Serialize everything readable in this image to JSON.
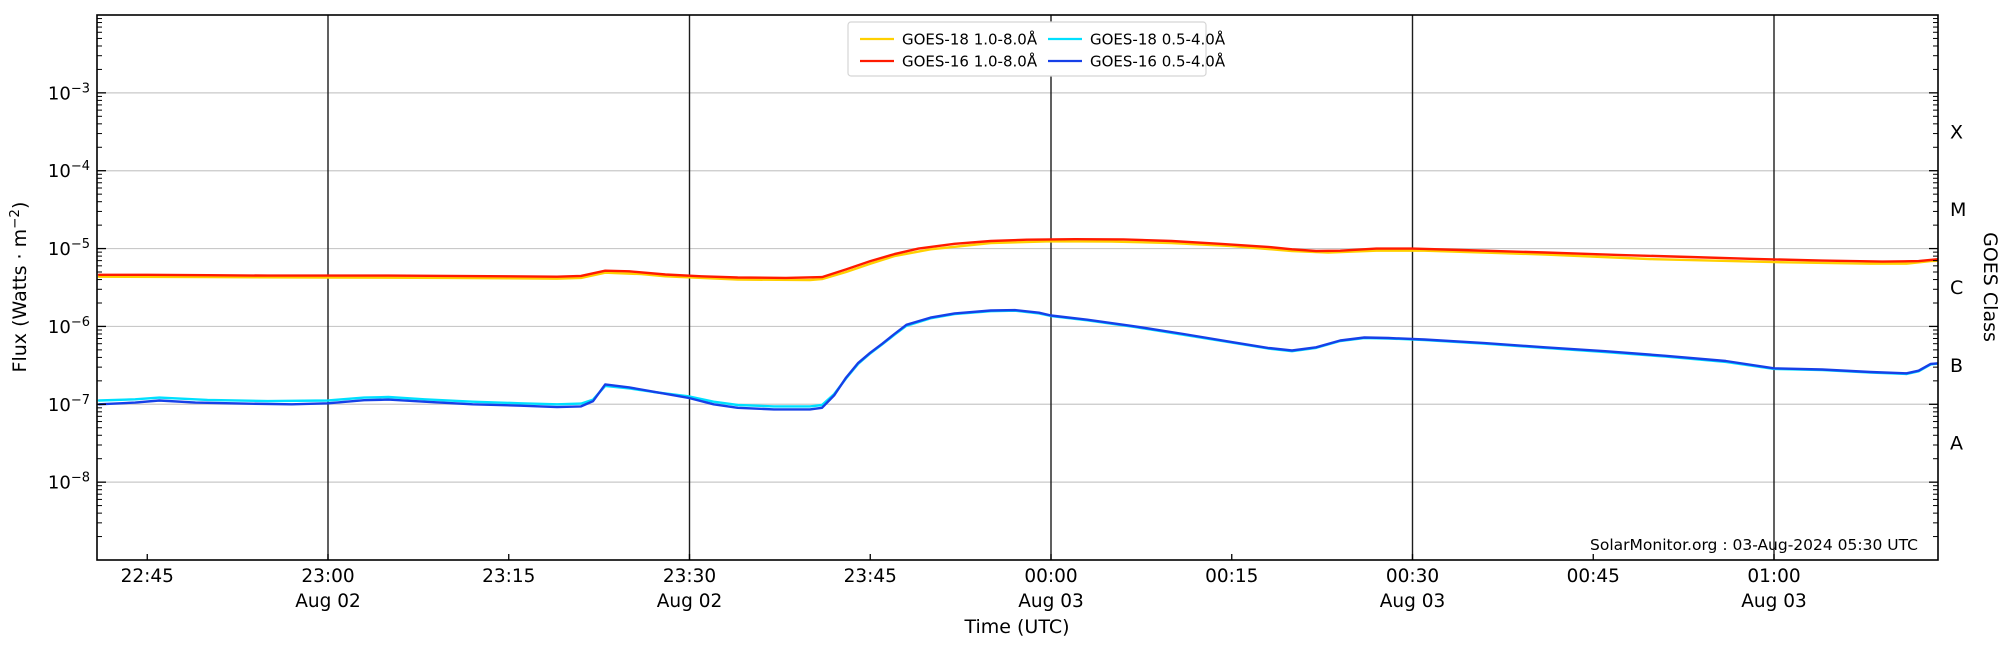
{
  "branding": {
    "annotation": "SolarMonitor.org : 03-Aug-2024 05:30 UTC"
  },
  "axes": {
    "x": {
      "title": "Time (UTC)",
      "ticks": [
        {
          "time": "22:45",
          "date": ""
        },
        {
          "time": "23:00",
          "date": "Aug 02"
        },
        {
          "time": "23:15",
          "date": ""
        },
        {
          "time": "23:30",
          "date": "Aug 02"
        },
        {
          "time": "23:45",
          "date": ""
        },
        {
          "time": "00:00",
          "date": "Aug 03"
        },
        {
          "time": "00:15",
          "date": ""
        },
        {
          "time": "00:30",
          "date": "Aug 03"
        },
        {
          "time": "00:45",
          "date": ""
        },
        {
          "time": "01:00",
          "date": "Aug 03"
        }
      ]
    },
    "y_left": {
      "title_prefix": "Flux (Watts · m",
      "title_sup": "−2",
      "title_suffix": ")",
      "tick_base": "10",
      "tick_exponents": [
        "−3",
        "−4",
        "−5",
        "−6",
        "−7",
        "−8"
      ],
      "scale": "log",
      "range_exponents": [
        -9,
        -2
      ]
    },
    "y_right": {
      "title": "GOES Class",
      "classes": [
        "X",
        "M",
        "C",
        "B",
        "A"
      ]
    }
  },
  "legend": {
    "items": [
      {
        "label": "GOES-18 1.0-8.0Å",
        "color": "#ffd000",
        "series": "goes18_long"
      },
      {
        "label": "GOES-16 1.0-8.0Å",
        "color": "#ff1a00",
        "series": "goes16_long"
      },
      {
        "label": "GOES-18 0.5-4.0Å",
        "color": "#00e0ff",
        "series": "goes18_short"
      },
      {
        "label": "GOES-16 0.5-4.0Å",
        "color": "#1640e8",
        "series": "goes16_short"
      }
    ]
  },
  "colors": {
    "gridline": "#c9c9c9",
    "vline": "#1c1c1c",
    "spine": "#000000",
    "legend_border": "#d5d5d5"
  },
  "chart_data": {
    "type": "line",
    "title": "",
    "xlabel": "Time (UTC)",
    "ylabel": "Flux (Watts · m^-2)",
    "ylabel_right": "GOES Class",
    "yscale": "log",
    "ylim": [
      1e-09,
      0.01
    ],
    "x_start": "2024-08-02 22:41 UTC",
    "x_end": "2024-08-03 01:14 UTC",
    "grid": {
      "horizontal": "light-gray each decade",
      "vertical": "black each 30 min"
    },
    "legend_position": "top-center",
    "goes_class_boundaries": {
      "A": 1e-08,
      "B": 1e-07,
      "C": 1e-06,
      "M": 1e-05,
      "X": 0.0001
    },
    "series": [
      {
        "name": "GOES-18 1.0-8.0Å",
        "color": "#ffd000",
        "points": [
          [
            "22:41",
            4.35e-06
          ],
          [
            "22:50",
            4.3e-06
          ],
          [
            "23:00",
            4.25e-06
          ],
          [
            "23:10",
            4.2e-06
          ],
          [
            "23:19",
            4.1e-06
          ],
          [
            "23:21",
            4.2e-06
          ],
          [
            "23:23",
            4.9e-06
          ],
          [
            "23:26",
            4.7e-06
          ],
          [
            "23:28",
            4.4e-06
          ],
          [
            "23:34",
            4e-06
          ],
          [
            "23:40",
            3.95e-06
          ],
          [
            "23:41",
            4.05e-06
          ],
          [
            "23:43",
            5e-06
          ],
          [
            "23:45",
            6.4e-06
          ],
          [
            "23:47",
            8e-06
          ],
          [
            "23:50",
            9.8e-06
          ],
          [
            "23:55",
            1.18e-05
          ],
          [
            "00:00",
            1.24e-05
          ],
          [
            "00:05",
            1.23e-05
          ],
          [
            "00:10",
            1.18e-05
          ],
          [
            "00:15",
            1.08e-05
          ],
          [
            "00:20",
            9.3e-06
          ],
          [
            "00:23",
            8.9e-06
          ],
          [
            "00:27",
            9.4e-06
          ],
          [
            "00:31",
            9.4e-06
          ],
          [
            "00:41",
            8.4e-06
          ],
          [
            "00:50",
            7.3e-06
          ],
          [
            "01:00",
            6.7e-06
          ],
          [
            "01:08",
            6.4e-06
          ],
          [
            "01:11",
            6.4e-06
          ],
          [
            "01:13",
            6.9e-06
          ],
          [
            "01:14",
            7e-06
          ]
        ]
      },
      {
        "name": "GOES-16 1.0-8.0Å",
        "color": "#ff1a00",
        "points": [
          [
            "22:41",
            4.6e-06
          ],
          [
            "22:45",
            4.6e-06
          ],
          [
            "22:50",
            4.55e-06
          ],
          [
            "22:55",
            4.5e-06
          ],
          [
            "23:00",
            4.5e-06
          ],
          [
            "23:05",
            4.5e-06
          ],
          [
            "23:10",
            4.45e-06
          ],
          [
            "23:15",
            4.4e-06
          ],
          [
            "23:19",
            4.35e-06
          ],
          [
            "23:21",
            4.45e-06
          ],
          [
            "23:23",
            5.2e-06
          ],
          [
            "23:25",
            5.1e-06
          ],
          [
            "23:28",
            4.65e-06
          ],
          [
            "23:31",
            4.4e-06
          ],
          [
            "23:34",
            4.25e-06
          ],
          [
            "23:38",
            4.2e-06
          ],
          [
            "23:41",
            4.3e-06
          ],
          [
            "23:43",
            5.4e-06
          ],
          [
            "23:45",
            6.9e-06
          ],
          [
            "23:47",
            8.5e-06
          ],
          [
            "23:49",
            1e-05
          ],
          [
            "23:52",
            1.15e-05
          ],
          [
            "23:55",
            1.25e-05
          ],
          [
            "23:58",
            1.3e-05
          ],
          [
            "00:02",
            1.32e-05
          ],
          [
            "00:06",
            1.31e-05
          ],
          [
            "00:10",
            1.25e-05
          ],
          [
            "00:14",
            1.15e-05
          ],
          [
            "00:18",
            1.05e-05
          ],
          [
            "00:20",
            9.8e-06
          ],
          [
            "00:22",
            9.3e-06
          ],
          [
            "00:24",
            9.4e-06
          ],
          [
            "00:27",
            1e-05
          ],
          [
            "00:30",
            1e-05
          ],
          [
            "00:34",
            9.6e-06
          ],
          [
            "00:41",
            8.9e-06
          ],
          [
            "00:47",
            8.3e-06
          ],
          [
            "00:53",
            7.8e-06
          ],
          [
            "00:58",
            7.4e-06
          ],
          [
            "01:04",
            7e-06
          ],
          [
            "01:09",
            6.8e-06
          ],
          [
            "01:12",
            6.9e-06
          ],
          [
            "01:14",
            7.4e-06
          ]
        ]
      },
      {
        "name": "GOES-18 0.5-4.0Å",
        "color": "#00e0ff",
        "points": [
          [
            "22:41",
            1.12e-07
          ],
          [
            "22:44",
            1.16e-07
          ],
          [
            "22:46",
            1.22e-07
          ],
          [
            "22:50",
            1.14e-07
          ],
          [
            "22:55",
            1.1e-07
          ],
          [
            "23:00",
            1.12e-07
          ],
          [
            "23:03",
            1.22e-07
          ],
          [
            "23:05",
            1.24e-07
          ],
          [
            "23:08",
            1.16e-07
          ],
          [
            "23:12",
            1.08e-07
          ],
          [
            "23:16",
            1.03e-07
          ],
          [
            "23:19",
            1e-07
          ],
          [
            "23:21",
            1.02e-07
          ],
          [
            "23:22",
            1.15e-07
          ],
          [
            "23:23",
            1.72e-07
          ],
          [
            "23:25",
            1.6e-07
          ],
          [
            "23:27",
            1.44e-07
          ],
          [
            "23:30",
            1.26e-07
          ],
          [
            "23:32",
            1.08e-07
          ],
          [
            "23:34",
            9.8e-08
          ],
          [
            "23:37",
            9.4e-08
          ],
          [
            "23:40",
            9.4e-08
          ],
          [
            "23:41",
            9.8e-08
          ],
          [
            "23:42",
            1.35e-07
          ],
          [
            "23:43",
            2.15e-07
          ],
          [
            "23:44",
            3.3e-07
          ],
          [
            "23:45",
            4.5e-07
          ],
          [
            "23:46",
            5.9e-07
          ],
          [
            "23:47",
            7.8e-07
          ],
          [
            "23:48",
            1.02e-06
          ],
          [
            "23:50",
            1.27e-06
          ],
          [
            "23:52",
            1.44e-06
          ],
          [
            "23:55",
            1.57e-06
          ],
          [
            "23:57",
            1.59e-06
          ],
          [
            "23:59",
            1.47e-06
          ],
          [
            "00:00",
            1.36e-06
          ],
          [
            "00:03",
            1.2e-06
          ],
          [
            "00:07",
            9.8e-07
          ],
          [
            "00:11",
            7.8e-07
          ],
          [
            "00:15",
            6.2e-07
          ],
          [
            "00:18",
            5.2e-07
          ],
          [
            "00:20",
            4.8e-07
          ],
          [
            "00:22",
            5.3e-07
          ],
          [
            "00:24",
            6.5e-07
          ],
          [
            "00:26",
            7.1e-07
          ],
          [
            "00:28",
            7e-07
          ],
          [
            "00:31",
            6.7e-07
          ],
          [
            "00:36",
            6e-07
          ],
          [
            "00:41",
            5.3e-07
          ],
          [
            "00:46",
            4.7e-07
          ],
          [
            "00:51",
            4.1e-07
          ],
          [
            "00:56",
            3.5e-07
          ],
          [
            "01:00",
            2.85e-07
          ],
          [
            "01:04",
            2.75e-07
          ],
          [
            "01:08",
            2.55e-07
          ],
          [
            "01:11",
            2.45e-07
          ],
          [
            "01:12",
            2.65e-07
          ],
          [
            "01:13",
            3.25e-07
          ],
          [
            "01:14",
            3.4e-07
          ]
        ]
      },
      {
        "name": "GOES-16 0.5-4.0Å",
        "color": "#1640e8",
        "points": [
          [
            "22:41",
            1e-07
          ],
          [
            "22:44",
            1.05e-07
          ],
          [
            "22:46",
            1.12e-07
          ],
          [
            "22:49",
            1.05e-07
          ],
          [
            "22:53",
            1.02e-07
          ],
          [
            "22:57",
            1e-07
          ],
          [
            "23:00",
            1.03e-07
          ],
          [
            "23:03",
            1.13e-07
          ],
          [
            "23:05",
            1.15e-07
          ],
          [
            "23:08",
            1.08e-07
          ],
          [
            "23:12",
            1e-07
          ],
          [
            "23:16",
            9.6e-08
          ],
          [
            "23:19",
            9.2e-08
          ],
          [
            "23:21",
            9.4e-08
          ],
          [
            "23:22",
            1.1e-07
          ],
          [
            "23:23",
            1.8e-07
          ],
          [
            "23:25",
            1.65e-07
          ],
          [
            "23:27",
            1.45e-07
          ],
          [
            "23:30",
            1.2e-07
          ],
          [
            "23:32",
            1e-07
          ],
          [
            "23:34",
            9e-08
          ],
          [
            "23:37",
            8.6e-08
          ],
          [
            "23:40",
            8.6e-08
          ],
          [
            "23:41",
            9e-08
          ],
          [
            "23:42",
            1.3e-07
          ],
          [
            "23:43",
            2.2e-07
          ],
          [
            "23:44",
            3.4e-07
          ],
          [
            "23:45",
            4.6e-07
          ],
          [
            "23:46",
            6e-07
          ],
          [
            "23:47",
            8e-07
          ],
          [
            "23:48",
            1.05e-06
          ],
          [
            "23:50",
            1.3e-06
          ],
          [
            "23:52",
            1.47e-06
          ],
          [
            "23:55",
            1.6e-06
          ],
          [
            "23:57",
            1.62e-06
          ],
          [
            "23:59",
            1.5e-06
          ],
          [
            "00:00",
            1.38e-06
          ],
          [
            "00:03",
            1.22e-06
          ],
          [
            "00:07",
            1e-06
          ],
          [
            "00:11",
            8e-07
          ],
          [
            "00:15",
            6.3e-07
          ],
          [
            "00:18",
            5.3e-07
          ],
          [
            "00:20",
            4.9e-07
          ],
          [
            "00:22",
            5.4e-07
          ],
          [
            "00:24",
            6.6e-07
          ],
          [
            "00:26",
            7.2e-07
          ],
          [
            "00:28",
            7.1e-07
          ],
          [
            "00:31",
            6.8e-07
          ],
          [
            "00:36",
            6.1e-07
          ],
          [
            "00:41",
            5.4e-07
          ],
          [
            "00:46",
            4.8e-07
          ],
          [
            "00:51",
            4.2e-07
          ],
          [
            "00:56",
            3.6e-07
          ],
          [
            "01:00",
            2.9e-07
          ],
          [
            "01:04",
            2.8e-07
          ],
          [
            "01:08",
            2.6e-07
          ],
          [
            "01:11",
            2.5e-07
          ],
          [
            "01:12",
            2.7e-07
          ],
          [
            "01:13",
            3.3e-07
          ],
          [
            "01:14",
            3.4e-07
          ]
        ]
      }
    ]
  }
}
